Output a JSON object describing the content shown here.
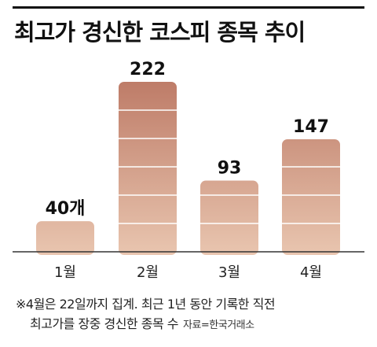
{
  "title": "최고가 경신한 코스피 종목 추이",
  "footnote_line1": "※4월은 22일까지 집계. 최근 1년 동안 기록한 직전",
  "footnote_line2": "최고가를 장중 경신한 종목 수",
  "source": "자료=한국거래소",
  "colors": {
    "bar_top": "#be7c68",
    "bar_bottom": "#e8c4ae",
    "axis": "#333333"
  },
  "chart_data": {
    "type": "bar",
    "title": "최고가 경신한 코스피 종목 추이",
    "categories": [
      "1월",
      "2월",
      "3월",
      "4월"
    ],
    "values": [
      40,
      222,
      93,
      147
    ],
    "value_labels": [
      "40개",
      "222",
      "93",
      "147"
    ],
    "ylim": [
      0,
      222
    ],
    "grid": false,
    "legend": "none"
  }
}
